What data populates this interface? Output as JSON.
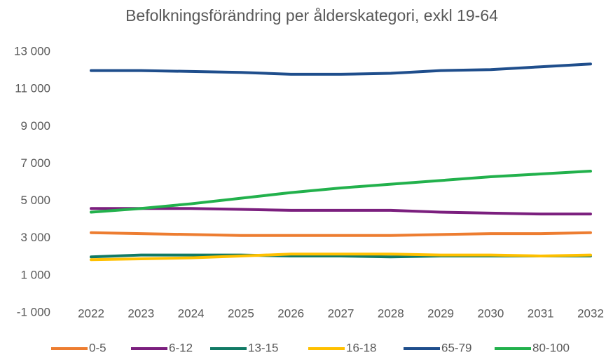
{
  "chart_data": {
    "type": "line",
    "title": "Befolkningsförändring per ålderskategori, exkl 19-64",
    "categories": [
      "2022",
      "2023",
      "2024",
      "2025",
      "2026",
      "2027",
      "2028",
      "2029",
      "2030",
      "2031",
      "2032"
    ],
    "series": [
      {
        "name": "0-5",
        "color": "#ed7d31",
        "values": [
          3300,
          3250,
          3200,
          3150,
          3150,
          3150,
          3150,
          3200,
          3250,
          3250,
          3300
        ]
      },
      {
        "name": "6-12",
        "color": "#7b1f7e",
        "values": [
          4600,
          4600,
          4600,
          4550,
          4500,
          4500,
          4500,
          4400,
          4350,
          4300,
          4300
        ]
      },
      {
        "name": "13-15",
        "color": "#117a65",
        "values": [
          2000,
          2100,
          2100,
          2100,
          2050,
          2050,
          2000,
          2050,
          2050,
          2050,
          2050
        ]
      },
      {
        "name": "16-18",
        "color": "#ffc000",
        "values": [
          1850,
          1900,
          1950,
          2050,
          2150,
          2150,
          2150,
          2100,
          2100,
          2050,
          2100
        ]
      },
      {
        "name": "65-79",
        "color": "#1f4e8c",
        "values": [
          12000,
          12000,
          11950,
          11900,
          11800,
          11800,
          11850,
          12000,
          12050,
          12200,
          12350
        ]
      },
      {
        "name": "80-100",
        "color": "#22b14c",
        "values": [
          4400,
          4600,
          4850,
          5150,
          5450,
          5700,
          5900,
          6100,
          6300,
          6450,
          6600
        ]
      }
    ],
    "ylim": [
      -1000,
      13000
    ],
    "yticks": [
      {
        "value": -1000,
        "label": "-1 000"
      },
      {
        "value": 1000,
        "label": "1 000"
      },
      {
        "value": 3000,
        "label": "3 000"
      },
      {
        "value": 5000,
        "label": "5 000"
      },
      {
        "value": 7000,
        "label": "7 000"
      },
      {
        "value": 9000,
        "label": "9 000"
      },
      {
        "value": 11000,
        "label": "11 000"
      },
      {
        "value": 13000,
        "label": "13 000"
      }
    ],
    "grid": false,
    "legend": "bottom"
  }
}
